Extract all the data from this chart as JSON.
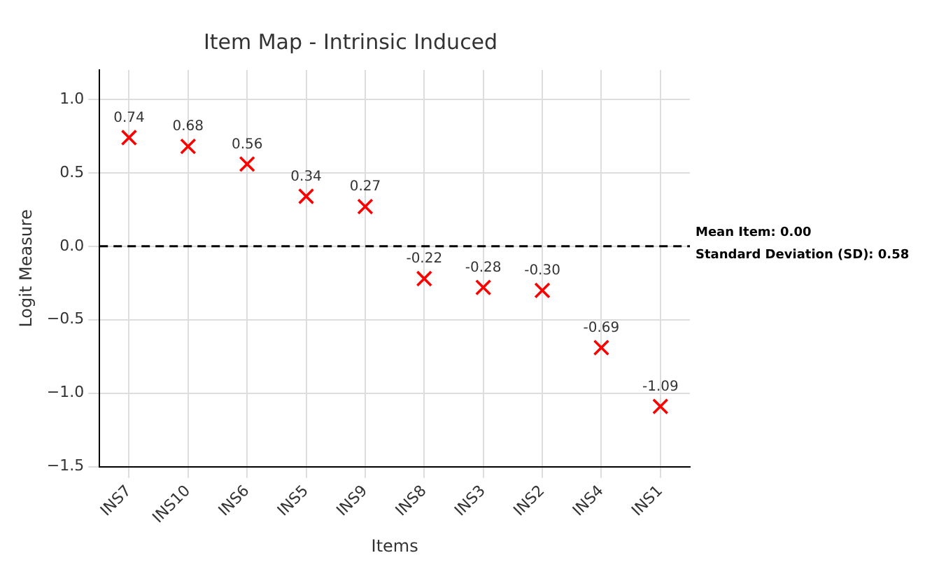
{
  "chart_data": {
    "type": "scatter",
    "title": "Item Map - Intrinsic Induced",
    "xlabel": "Items",
    "ylabel": "Logit Measure",
    "categories": [
      "INS7",
      "INS10",
      "INS6",
      "INS5",
      "INS9",
      "INS8",
      "INS3",
      "INS2",
      "INS4",
      "INS1"
    ],
    "series": [
      {
        "color": "#ff0000",
        "values": [
          0.74,
          0.68,
          0.56,
          0.34,
          0.27,
          -0.22,
          -0.28,
          -0.3,
          -0.69,
          -1.09
        ]
      }
    ],
    "value_labels": [
      "0.74",
      "0.68",
      "0.56",
      "0.34",
      "0.27",
      "-0.22",
      "-0.28",
      "-0.30",
      "-0.69",
      "-1.09"
    ],
    "ylim": [
      -1.5,
      1.2
    ],
    "yticks": [
      {
        "value": -1.5,
        "label": "−1.5"
      },
      {
        "value": -1.0,
        "label": "−1.0"
      },
      {
        "value": -0.5,
        "label": "−0.5"
      },
      {
        "value": 0,
        "label": "0.0"
      },
      {
        "value": 0.5,
        "label": "0.5"
      },
      {
        "value": 1.0,
        "label": "1.0"
      }
    ],
    "ref_lines": [
      {
        "axis": "y",
        "value": 0,
        "label": "Mean Item: 0.00",
        "color": "#000000",
        "line_style": "dashed"
      }
    ],
    "annotations": [
      "Standard Deviation (SD): 0.58"
    ],
    "grid": true,
    "marker": "cross",
    "legend": false
  }
}
